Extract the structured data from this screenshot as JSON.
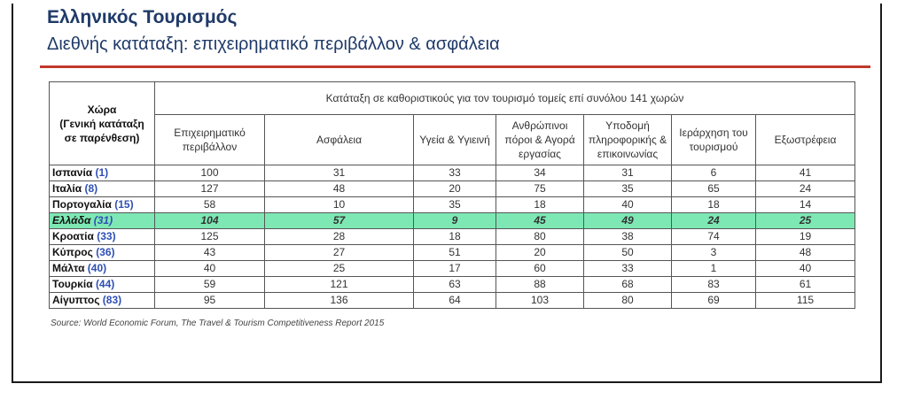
{
  "header": {
    "title": "Ελληνικός Τουρισμός",
    "subtitle": "Διεθνής κατάταξη: επιχειρηματικό περιβάλλον & ασφάλεια"
  },
  "table": {
    "country_header": [
      "Χώρα",
      "(Γενική κατάταξη",
      "σε παρένθεση)"
    ],
    "span_header": "Κατάταξη σε καθοριστικούς για τον τουρισμό τομείς επί συνόλου 141 χωρών",
    "columns": [
      "Επιχειρηματικό περιβάλλον",
      "Ασφάλεια",
      "Υγεία & Υγιεινή",
      "Ανθρώπινοι πόροι & Αγορά εργασίας",
      "Υποδομή πληροφορικής & επικοινωνίας",
      "Ιεράρχηση του τουρισμού",
      "Εξωστρέφεια"
    ],
    "rows": [
      {
        "name": "Ισπανία",
        "rank": "(1)",
        "values": [
          "100",
          "31",
          "33",
          "34",
          "31",
          "6",
          "41"
        ]
      },
      {
        "name": "Ιταλία",
        "rank": "(8)",
        "values": [
          "127",
          "48",
          "20",
          "75",
          "35",
          "65",
          "24"
        ]
      },
      {
        "name": "Πορτογαλία",
        "rank": "(15)",
        "values": [
          "58",
          "10",
          "35",
          "18",
          "40",
          "18",
          "14"
        ]
      },
      {
        "name": "Ελλάδα",
        "rank": "(31)",
        "values": [
          "104",
          "57",
          "9",
          "45",
          "49",
          "24",
          "25"
        ],
        "highlight": true
      },
      {
        "name": "Κροατία",
        "rank": "(33)",
        "values": [
          "125",
          "28",
          "18",
          "80",
          "38",
          "74",
          "19"
        ]
      },
      {
        "name": "Κύπρος",
        "rank": "(36)",
        "values": [
          "43",
          "27",
          "51",
          "20",
          "50",
          "3",
          "48"
        ]
      },
      {
        "name": "Μάλτα",
        "rank": "(40)",
        "values": [
          "40",
          "25",
          "17",
          "60",
          "33",
          "1",
          "40"
        ]
      },
      {
        "name": "Τουρκία",
        "rank": "(44)",
        "values": [
          "59",
          "121",
          "63",
          "88",
          "68",
          "83",
          "61"
        ]
      },
      {
        "name": "Αίγυπτος",
        "rank": "(83)",
        "values": [
          "95",
          "136",
          "64",
          "103",
          "80",
          "69",
          "115"
        ]
      }
    ]
  },
  "source": "Source: World Economic Forum, The Travel & Tourism Competitiveness Report 2015",
  "colors": {
    "title": "#1f3a68",
    "rule": "#c0392b",
    "highlight": "#7ee8b5",
    "rank": "#2f4fb5"
  }
}
